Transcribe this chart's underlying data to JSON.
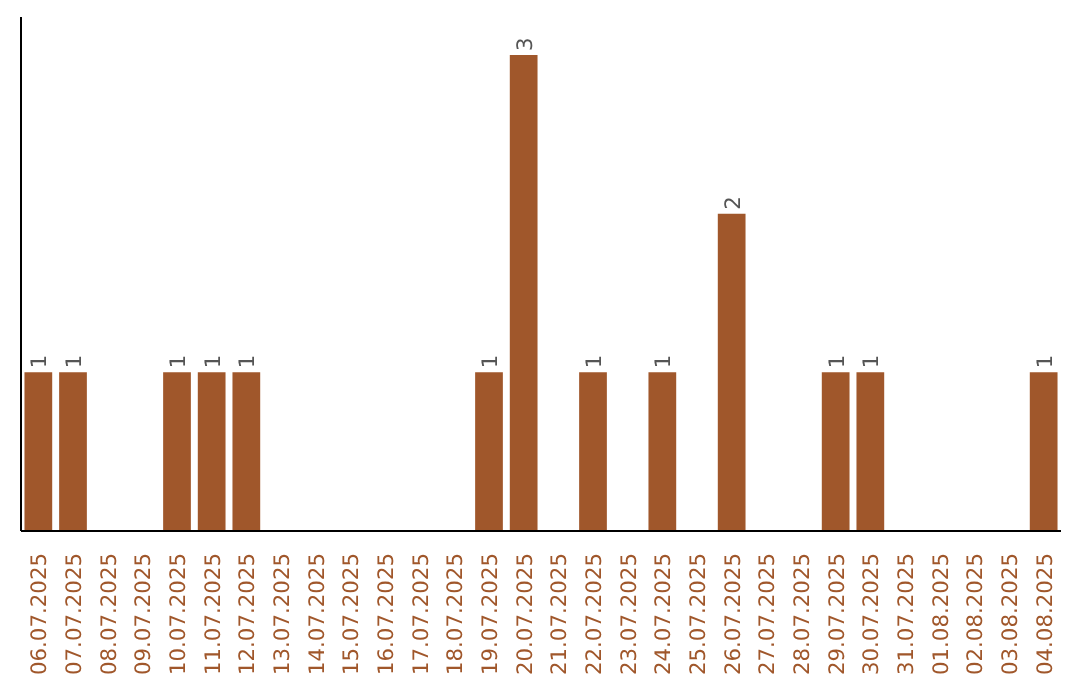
{
  "chart_data": {
    "type": "bar",
    "categories": [
      "06.07.2025",
      "07.07.2025",
      "08.07.2025",
      "09.07.2025",
      "10.07.2025",
      "11.07.2025",
      "12.07.2025",
      "13.07.2025",
      "14.07.2025",
      "15.07.2025",
      "16.07.2025",
      "17.07.2025",
      "18.07.2025",
      "19.07.2025",
      "20.07.2025",
      "21.07.2025",
      "22.07.2025",
      "23.07.2025",
      "24.07.2025",
      "25.07.2025",
      "26.07.2025",
      "27.07.2025",
      "28.07.2025",
      "29.07.2025",
      "30.07.2025",
      "31.07.2025",
      "01.08.2025",
      "02.08.2025",
      "03.08.2025",
      "04.08.2025"
    ],
    "values": [
      1,
      1,
      0,
      0,
      1,
      1,
      1,
      0,
      0,
      0,
      0,
      0,
      0,
      1,
      3,
      0,
      1,
      0,
      1,
      0,
      2,
      0,
      0,
      1,
      1,
      0,
      0,
      0,
      0,
      1
    ],
    "value_labels": [
      "1",
      "1",
      null,
      null,
      "1",
      "1",
      "1",
      null,
      null,
      null,
      null,
      null,
      null,
      "1",
      "3",
      null,
      "1",
      null,
      "1",
      null,
      "2",
      null,
      null,
      "1",
      "1",
      null,
      null,
      null,
      null,
      "1"
    ],
    "color": "#a0572b",
    "tick_labels": "x",
    "grid": false
  }
}
